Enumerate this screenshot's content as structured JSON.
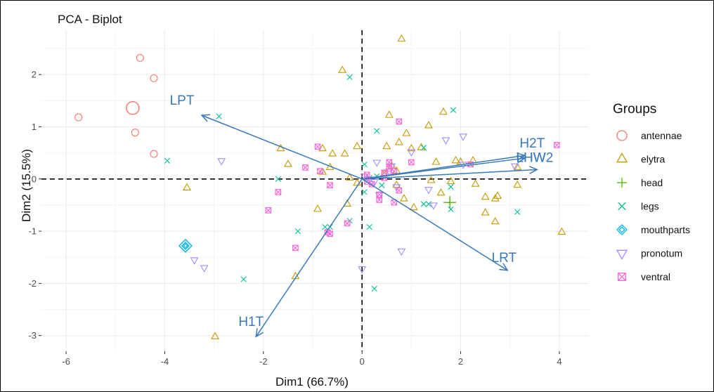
{
  "chart_data": {
    "type": "scatter",
    "title": "PCA - Biplot",
    "xlabel": "Dim1 (66.7%)",
    "ylabel": "Dim2 (15.5%)",
    "xlim": [
      -6.5,
      4.6
    ],
    "ylim": [
      -3.3,
      2.85
    ],
    "xticks": [
      -6,
      -4,
      -2,
      0,
      2,
      4
    ],
    "yticks": [
      -3,
      -2,
      -1,
      0,
      1,
      2
    ],
    "grid": true,
    "legend_title": "Groups",
    "legend_position": "right",
    "series": [
      {
        "name": "antennae",
        "color": "#F8766D",
        "shape": "circle",
        "points": [
          [
            -5.75,
            1.18
          ],
          [
            -4.5,
            2.32
          ],
          [
            -4.22,
            1.93
          ],
          [
            -4.6,
            0.89
          ],
          [
            -4.22,
            0.48
          ]
        ],
        "centroid": [
          -4.65,
          1.36
        ]
      },
      {
        "name": "elytra",
        "color": "#C49A00",
        "shape": "triangle-up",
        "points": [
          [
            0.8,
            2.68
          ],
          [
            -0.4,
            2.08
          ],
          [
            -3.55,
            -0.17
          ],
          [
            -2.98,
            -3.02
          ],
          [
            -1.35,
            -1.87
          ],
          [
            -1.65,
            0.58
          ],
          [
            -1.5,
            0.28
          ],
          [
            -0.9,
            -0.58
          ],
          [
            -0.8,
            0.58
          ],
          [
            -0.6,
            0.48
          ],
          [
            -0.25,
            0.02
          ],
          [
            -0.35,
            0.48
          ],
          [
            -0.8,
            0.13
          ],
          [
            -0.65,
            0.22
          ],
          [
            -0.3,
            -0.48
          ],
          [
            -0.1,
            0.62
          ],
          [
            0.55,
            1.22
          ],
          [
            0.5,
            0.62
          ],
          [
            0.75,
            0.7
          ],
          [
            0.9,
            0.87
          ],
          [
            0.85,
            -0.38
          ],
          [
            0.45,
            0.1
          ],
          [
            0.6,
            0.25
          ],
          [
            0.7,
            -0.12
          ],
          [
            1.05,
            -0.55
          ],
          [
            1.2,
            0.6
          ],
          [
            1.35,
            1.02
          ],
          [
            1.4,
            -0.03
          ],
          [
            1.5,
            0.32
          ],
          [
            1.6,
            -0.27
          ],
          [
            1.65,
            1.28
          ],
          [
            1.8,
            -0.05
          ],
          [
            2.0,
            0.32
          ],
          [
            1.9,
            0.35
          ],
          [
            2.25,
            0.35
          ],
          [
            2.3,
            -0.1
          ],
          [
            2.5,
            -0.35
          ],
          [
            2.5,
            -0.65
          ],
          [
            2.7,
            -0.38
          ],
          [
            2.75,
            -0.33
          ],
          [
            2.7,
            -0.82
          ],
          [
            3.15,
            -0.12
          ],
          [
            3.15,
            0.22
          ],
          [
            4.05,
            -1.02
          ],
          [
            -0.1,
            -0.08
          ],
          [
            1.0,
            0.58
          ],
          [
            0.7,
            0.15
          ]
        ]
      },
      {
        "name": "head",
        "color": "#53B400",
        "shape": "plus",
        "points": [
          [
            1.78,
            -0.45
          ]
        ],
        "centroid": [
          1.78,
          -0.45
        ]
      },
      {
        "name": "legs",
        "color": "#00C094",
        "shape": "cross",
        "points": [
          [
            -0.25,
            1.95
          ],
          [
            -2.9,
            1.2
          ],
          [
            -3.95,
            0.35
          ],
          [
            -1.7,
            0.0
          ],
          [
            -2.4,
            -1.92
          ],
          [
            -1.3,
            -1.0
          ],
          [
            -0.75,
            -0.92
          ],
          [
            -0.65,
            -0.92
          ],
          [
            -0.25,
            -0.8
          ],
          [
            0.05,
            -0.25
          ],
          [
            0.05,
            0.28
          ],
          [
            0.15,
            0.02
          ],
          [
            0.15,
            -0.92
          ],
          [
            0.3,
            0.92
          ],
          [
            0.25,
            -2.1
          ],
          [
            1.25,
            0.6
          ],
          [
            1.25,
            -0.48
          ],
          [
            1.35,
            -0.48
          ],
          [
            1.8,
            -0.15
          ],
          [
            1.8,
            -0.58
          ],
          [
            1.85,
            1.32
          ],
          [
            3.15,
            -0.63
          ],
          [
            0.4,
            -0.12
          ],
          [
            0.3,
            0.05
          ]
        ]
      },
      {
        "name": "mouthparts",
        "color": "#00B6EB",
        "shape": "diamond",
        "points": [
          [
            -3.58,
            -1.28
          ]
        ],
        "centroid": [
          -3.58,
          -1.28
        ]
      },
      {
        "name": "pronotum",
        "color": "#A58AFF",
        "shape": "triangle-down",
        "points": [
          [
            -2.85,
            0.35
          ],
          [
            -3.4,
            -1.55
          ],
          [
            -3.2,
            -1.7
          ],
          [
            0.0,
            -1.72
          ],
          [
            0.3,
            0.32
          ],
          [
            0.7,
            -0.15
          ],
          [
            0.8,
            -1.38
          ],
          [
            1.0,
            0.52
          ],
          [
            1.35,
            -0.2
          ],
          [
            1.45,
            -0.5
          ],
          [
            1.7,
            0.75
          ],
          [
            2.05,
            0.82
          ],
          [
            2.05,
            0.28
          ],
          [
            3.1,
            0.25
          ],
          [
            0.05,
            0.05
          ],
          [
            0.15,
            0.0
          ],
          [
            0.25,
            -0.05
          ],
          [
            0.35,
            -0.3
          ],
          [
            0.55,
            0.15
          ],
          [
            0.6,
            0.25
          ]
        ]
      },
      {
        "name": "ventral",
        "color": "#FB61D7",
        "shape": "square-cross",
        "points": [
          [
            -0.9,
            0.62
          ],
          [
            -1.15,
            0.22
          ],
          [
            -0.85,
            0.15
          ],
          [
            -0.65,
            -0.12
          ],
          [
            -0.7,
            -1.02
          ],
          [
            -0.65,
            -1.05
          ],
          [
            -0.3,
            -0.85
          ],
          [
            -1.35,
            -1.32
          ],
          [
            -1.7,
            -0.25
          ],
          [
            -1.9,
            -0.6
          ],
          [
            0.45,
            0.12
          ],
          [
            0.55,
            0.32
          ],
          [
            0.55,
            0.2
          ],
          [
            0.65,
            0.15
          ],
          [
            0.75,
            1.1
          ],
          [
            1.0,
            0.32
          ],
          [
            0.75,
            -0.22
          ],
          [
            0.65,
            -0.45
          ],
          [
            0.35,
            -0.4
          ],
          [
            2.2,
            0.28
          ],
          [
            3.95,
            0.65
          ],
          [
            0.1,
            -0.05
          ],
          [
            0.2,
            -0.1
          ],
          [
            0.45,
            0.02
          ],
          [
            0.35,
            -0.3
          ],
          [
            0.1,
            0.08
          ]
        ]
      }
    ],
    "variables": [
      {
        "name": "LPT",
        "end": [
          -3.25,
          1.22
        ],
        "label_at": [
          -3.65,
          1.52
        ]
      },
      {
        "name": "H2T",
        "end": [
          3.3,
          0.45
        ],
        "label_at": [
          3.45,
          0.7
        ]
      },
      {
        "name": "HW",
        "end": [
          3.3,
          0.4
        ],
        "label_at": [
          3.5,
          0.42
        ]
      },
      {
        "name": "LHW2",
        "end": [
          3.55,
          0.18
        ],
        "label_at": [
          3.5,
          0.42
        ]
      },
      {
        "name": "LRT",
        "end": [
          2.95,
          -1.75
        ],
        "label_at": [
          2.88,
          -1.5
        ]
      },
      {
        "name": "H1T",
        "end": [
          -2.15,
          -3.02
        ],
        "label_at": [
          -2.25,
          -2.72
        ]
      }
    ]
  }
}
